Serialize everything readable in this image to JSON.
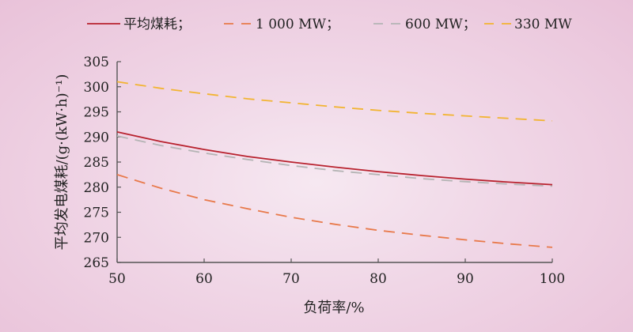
{
  "chart_data": {
    "type": "line",
    "xlabel": "负荷率/%",
    "ylabel": "平均发电煤耗/(g·(kW·h)⁻¹)",
    "xlim": [
      50,
      100
    ],
    "ylim": [
      265,
      305
    ],
    "x_ticks": [
      50,
      60,
      70,
      80,
      90,
      100
    ],
    "y_ticks": [
      265,
      270,
      275,
      280,
      285,
      290,
      295,
      300,
      305
    ],
    "grid": false,
    "legend_position": "top",
    "x": [
      50,
      55,
      60,
      65,
      70,
      75,
      80,
      85,
      90,
      95,
      100
    ],
    "series": [
      {
        "name": "平均煤耗；",
        "color": "#b8222e",
        "style": "solid",
        "values": [
          291.0,
          289.1,
          287.5,
          286.1,
          285.0,
          284.0,
          283.1,
          282.3,
          281.6,
          281.0,
          280.5
        ]
      },
      {
        "name": "1 000 MW；",
        "color": "#e8794a",
        "style": "dashed",
        "values": [
          282.5,
          279.8,
          277.5,
          275.7,
          274.0,
          272.6,
          271.4,
          270.4,
          269.5,
          268.7,
          268.0
        ]
      },
      {
        "name": "600 MW；",
        "color": "#b4b4b4",
        "style": "dashed",
        "values": [
          290.2,
          288.3,
          286.8,
          285.5,
          284.3,
          283.3,
          282.5,
          281.7,
          281.1,
          280.6,
          280.2
        ]
      },
      {
        "name": "330 MW",
        "color": "#f2b431",
        "style": "dashed",
        "values": [
          301.0,
          299.7,
          298.6,
          297.6,
          296.8,
          296.0,
          295.3,
          294.7,
          294.2,
          293.7,
          293.2
        ]
      }
    ]
  }
}
